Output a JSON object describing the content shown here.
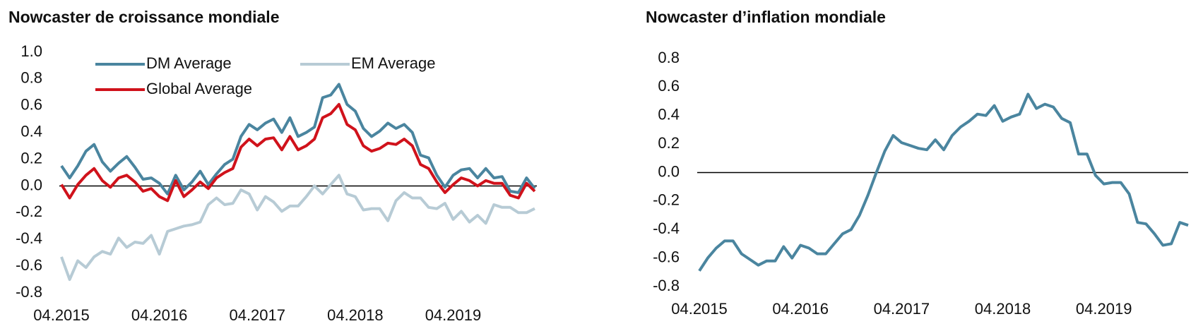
{
  "chart_data": [
    {
      "type": "line",
      "title": "Nowcaster de croissance mondiale",
      "categories": [
        "04.2015",
        null,
        null,
        null,
        null,
        null,
        null,
        null,
        null,
        null,
        null,
        null,
        "04.2016",
        null,
        null,
        null,
        null,
        null,
        null,
        null,
        null,
        null,
        null,
        null,
        "04.2017",
        null,
        null,
        null,
        null,
        null,
        null,
        null,
        null,
        null,
        null,
        null,
        "04.2018",
        null,
        null,
        null,
        null,
        null,
        null,
        null,
        null,
        null,
        null,
        null,
        "04.2019",
        null,
        null,
        null,
        null,
        null,
        null,
        null,
        null,
        null,
        null
      ],
      "series": [
        {
          "name": "DM Average",
          "color": "#4a859f",
          "values": [
            0.15,
            0.06,
            0.15,
            0.26,
            0.31,
            0.18,
            0.11,
            0.17,
            0.22,
            0.14,
            0.05,
            0.06,
            0.02,
            -0.06,
            0.08,
            -0.03,
            0.03,
            0.11,
            0.01,
            0.09,
            0.16,
            0.2,
            0.37,
            0.46,
            0.42,
            0.47,
            0.5,
            0.4,
            0.51,
            0.37,
            0.4,
            0.44,
            0.66,
            0.68,
            0.76,
            0.61,
            0.56,
            0.43,
            0.37,
            0.41,
            0.47,
            0.43,
            0.46,
            0.4,
            0.23,
            0.21,
            0.08,
            -0.01,
            0.08,
            0.12,
            0.13,
            0.06,
            0.13,
            0.06,
            0.07,
            -0.04,
            -0.05,
            0.06,
            -0.02
          ]
        },
        {
          "name": "EM Average",
          "color": "#b7cbd5",
          "values": [
            -0.53,
            -0.7,
            -0.56,
            -0.61,
            -0.53,
            -0.49,
            -0.51,
            -0.39,
            -0.46,
            -0.42,
            -0.43,
            -0.37,
            -0.51,
            -0.34,
            -0.32,
            -0.3,
            -0.29,
            -0.27,
            -0.14,
            -0.09,
            -0.14,
            -0.13,
            -0.03,
            -0.06,
            -0.18,
            -0.08,
            -0.12,
            -0.19,
            -0.15,
            -0.15,
            -0.08,
            0.0,
            -0.06,
            0.01,
            0.08,
            -0.06,
            -0.08,
            -0.18,
            -0.17,
            -0.17,
            -0.26,
            -0.11,
            -0.05,
            -0.09,
            -0.09,
            -0.16,
            -0.17,
            -0.13,
            -0.25,
            -0.19,
            -0.27,
            -0.22,
            -0.28,
            -0.14,
            -0.16,
            -0.16,
            -0.2,
            -0.2,
            -0.17
          ]
        },
        {
          "name": "Global Average",
          "color": "#d0121b",
          "values": [
            0.01,
            -0.09,
            0.01,
            0.08,
            0.13,
            0.04,
            -0.01,
            0.06,
            0.08,
            0.03,
            -0.04,
            -0.02,
            -0.08,
            -0.11,
            0.04,
            -0.08,
            -0.03,
            0.03,
            -0.02,
            0.06,
            0.1,
            0.13,
            0.29,
            0.35,
            0.3,
            0.35,
            0.36,
            0.27,
            0.37,
            0.27,
            0.3,
            0.35,
            0.51,
            0.54,
            0.61,
            0.46,
            0.42,
            0.3,
            0.26,
            0.28,
            0.32,
            0.31,
            0.35,
            0.3,
            0.16,
            0.13,
            0.03,
            -0.05,
            0.01,
            0.06,
            0.04,
            0.0,
            0.04,
            0.02,
            0.02,
            -0.07,
            -0.09,
            0.02,
            -0.04
          ]
        }
      ],
      "ylim": [
        -0.8,
        1.0
      ],
      "yticks": [
        {
          "value": 1,
          "label": "1.0"
        },
        0.8,
        0.6,
        0.4,
        0.2,
        {
          "value": 0,
          "label": "0.0"
        },
        -0.2,
        -0.4,
        -0.6,
        -0.8
      ]
    },
    {
      "type": "line",
      "title": "Nowcaster d’inflation mondiale",
      "categories": [
        "04.2015",
        null,
        null,
        null,
        null,
        null,
        null,
        null,
        null,
        null,
        null,
        null,
        "04.2016",
        null,
        null,
        null,
        null,
        null,
        null,
        null,
        null,
        null,
        null,
        null,
        "04.2017",
        null,
        null,
        null,
        null,
        null,
        null,
        null,
        null,
        null,
        null,
        null,
        "04.2018",
        null,
        null,
        null,
        null,
        null,
        null,
        null,
        null,
        null,
        null,
        null,
        "04.2019",
        null,
        null,
        null,
        null,
        null,
        null,
        null,
        null,
        null,
        null
      ],
      "color": "#4a859f",
      "values": [
        -0.69,
        -0.6,
        -0.53,
        -0.48,
        -0.48,
        -0.57,
        -0.61,
        -0.65,
        -0.62,
        -0.62,
        -0.52,
        -0.6,
        -0.51,
        -0.53,
        -0.57,
        -0.57,
        -0.5,
        -0.43,
        -0.4,
        -0.3,
        -0.16,
        0.0,
        0.15,
        0.26,
        0.21,
        0.19,
        0.17,
        0.16,
        0.23,
        0.16,
        0.26,
        0.32,
        0.36,
        0.41,
        0.4,
        0.47,
        0.36,
        0.39,
        0.41,
        0.55,
        0.45,
        0.48,
        0.46,
        0.38,
        0.35,
        0.13,
        0.13,
        -0.02,
        -0.08,
        -0.07,
        -0.07,
        -0.15,
        -0.35,
        -0.36,
        -0.43,
        -0.51,
        -0.5,
        -0.35,
        -0.37
      ],
      "ylim": [
        -0.8,
        0.8
      ],
      "yticks": [
        0.8,
        0.6,
        0.4,
        0.2,
        {
          "value": 0,
          "label": "0.0"
        },
        -0.2,
        -0.4,
        -0.6,
        -0.8
      ]
    }
  ]
}
